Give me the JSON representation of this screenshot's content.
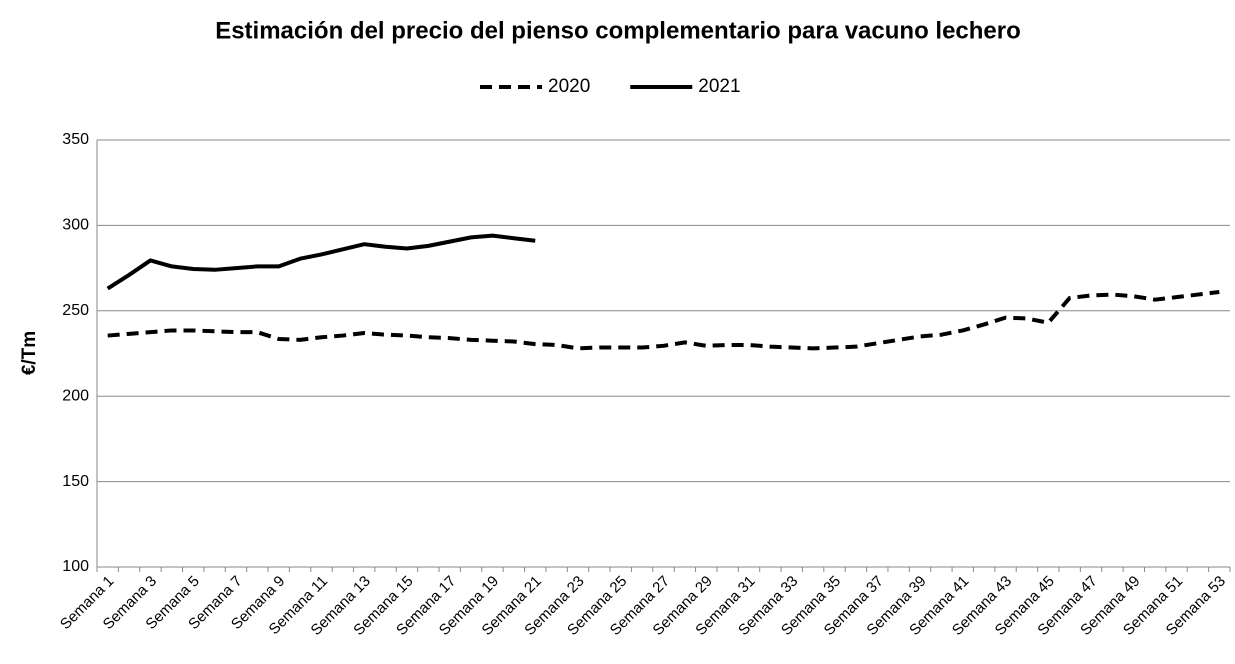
{
  "chart_data": {
    "type": "line",
    "title": "Estimación del precio del pienso complementario para vacuno lechero",
    "y_label": "€/Tm",
    "categories": [
      "Semana 1",
      null,
      "Semana 3",
      null,
      "Semana 5",
      null,
      "Semana 7",
      null,
      "Semana 9",
      null,
      "Semana 11",
      null,
      "Semana 13",
      null,
      "Semana 15",
      null,
      "Semana 17",
      null,
      "Semana 19",
      null,
      "Semana 21",
      null,
      "Semana 23",
      null,
      "Semana 25",
      null,
      "Semana 27",
      null,
      "Semana 29",
      null,
      "Semana 31",
      null,
      "Semana 33",
      null,
      "Semana 35",
      null,
      "Semana 37",
      null,
      "Semana 39",
      null,
      "Semana 41",
      null,
      "Semana 43",
      null,
      "Semana 45",
      null,
      "Semana 47",
      null,
      "Semana 49",
      null,
      "Semana 51",
      null,
      "Semana 53"
    ],
    "series": [
      {
        "name": "2020",
        "color": "#000000",
        "dash": true,
        "values": [
          235.5,
          236.5,
          237.5,
          238.5,
          238.5,
          238,
          237.5,
          237.5,
          233.5,
          233,
          234.5,
          235.5,
          237,
          236,
          235.5,
          234.5,
          234,
          233,
          232.5,
          232,
          230.5,
          230,
          228,
          228.5,
          228.5,
          228.5,
          229.5,
          231.5,
          229.5,
          230,
          230,
          229,
          228.5,
          228,
          228.5,
          229,
          231,
          233,
          235,
          236,
          238.5,
          242,
          246,
          245.5,
          243,
          257.5,
          259,
          259.5,
          258.5,
          256.5,
          258,
          259.5,
          261
        ]
      },
      {
        "name": "2021",
        "color": "#000000",
        "dash": false,
        "values": [
          263,
          271,
          279.5,
          276,
          274.5,
          274,
          275,
          276,
          276,
          280.5,
          283,
          286,
          289,
          287.5,
          286.5,
          288,
          290.5,
          293,
          294,
          292.5,
          291,
          null,
          null,
          null,
          null,
          null,
          null,
          null,
          null,
          null,
          null,
          null,
          null,
          null,
          null,
          null,
          null,
          null,
          null,
          null,
          null,
          null,
          null,
          null,
          null,
          null,
          null,
          null,
          null,
          null,
          null,
          null,
          null
        ]
      }
    ],
    "ylim": [
      100,
      350
    ],
    "yticks": [
      100,
      150,
      200,
      250,
      300,
      350
    ],
    "grid": true,
    "legend": "top"
  }
}
